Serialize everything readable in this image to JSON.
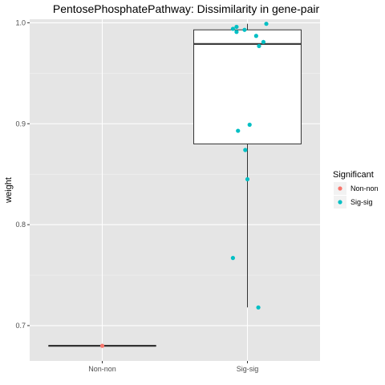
{
  "chart_data": {
    "type": "boxplot",
    "title": "PentosePhosphatePathway: Dissimilarity in gene-pair",
    "xlabel": "",
    "ylabel": "weight",
    "categories": [
      "Non-non",
      "Sig-sig"
    ],
    "ylim": [
      0.665,
      1.0035
    ],
    "yticks": [
      0.7,
      0.8,
      0.9,
      1.0
    ],
    "ytick_labels": [
      "0.7",
      "0.8",
      "0.9",
      "1.0"
    ],
    "grid": true,
    "legend": {
      "title": "Significant",
      "position": "right",
      "entries": [
        {
          "label": "Non-non",
          "color": "#F8766D"
        },
        {
          "label": "Sig-sig",
          "color": "#00BFC4"
        }
      ]
    },
    "boxes": [
      {
        "category": "Non-non",
        "min": 0.68,
        "q1": 0.68,
        "median": 0.68,
        "q3": 0.68,
        "max": 0.68
      },
      {
        "category": "Sig-sig",
        "min": 0.718,
        "q1": 0.88,
        "median": 0.979,
        "q3": 0.993,
        "max": 0.999
      }
    ],
    "points": [
      {
        "category": "Non-non",
        "jitter": 0.0,
        "y": 0.68
      },
      {
        "category": "Sig-sig",
        "jitter": -0.2,
        "y": 0.994
      },
      {
        "category": "Sig-sig",
        "jitter": -0.15,
        "y": 0.996
      },
      {
        "category": "Sig-sig",
        "jitter": -0.15,
        "y": 0.991
      },
      {
        "category": "Sig-sig",
        "jitter": -0.04,
        "y": 0.993
      },
      {
        "category": "Sig-sig",
        "jitter": 0.26,
        "y": 0.999
      },
      {
        "category": "Sig-sig",
        "jitter": 0.12,
        "y": 0.987
      },
      {
        "category": "Sig-sig",
        "jitter": 0.22,
        "y": 0.981
      },
      {
        "category": "Sig-sig",
        "jitter": 0.16,
        "y": 0.977
      },
      {
        "category": "Sig-sig",
        "jitter": 0.03,
        "y": 0.899
      },
      {
        "category": "Sig-sig",
        "jitter": -0.13,
        "y": 0.893
      },
      {
        "category": "Sig-sig",
        "jitter": -0.03,
        "y": 0.874
      },
      {
        "category": "Sig-sig",
        "jitter": 0.0,
        "y": 0.845
      },
      {
        "category": "Sig-sig",
        "jitter": -0.2,
        "y": 0.767
      },
      {
        "category": "Sig-sig",
        "jitter": 0.15,
        "y": 0.718
      }
    ],
    "colors": {
      "panel_bg": "#E5E5E5",
      "grid_major": "#FFFFFF",
      "grid_minor": "#F2F2F2",
      "box_fill": "#FFFFFF",
      "box_line": "#333333"
    }
  }
}
